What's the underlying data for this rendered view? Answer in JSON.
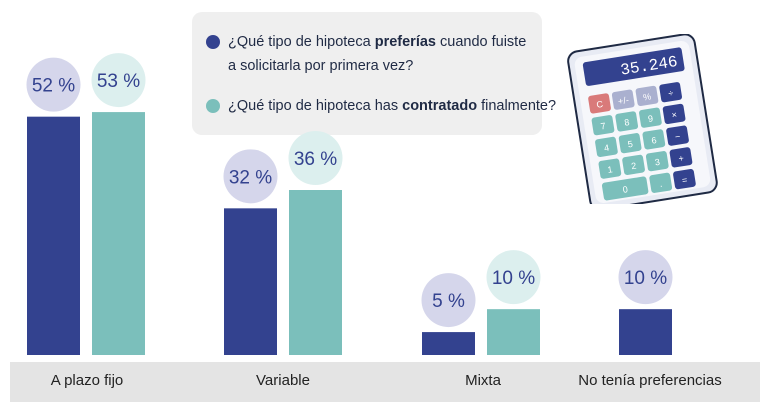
{
  "chart_data": {
    "type": "bar",
    "categories": [
      "A plazo fijo",
      "Variable",
      "Mixta",
      "No tenía preferencias"
    ],
    "series": [
      {
        "name": "¿Qué tipo de hipoteca preferías cuando fuiste a solicitarla por primera vez?",
        "legend_parts": [
          "¿Qué tipo de hipoteca ",
          "preferías",
          " cuando fuiste",
          "a solicitarla por primera vez?"
        ],
        "color": "#33428f",
        "bubble_color": "#d5d6eb",
        "values": [
          52,
          32,
          5,
          10
        ],
        "labels": [
          "52 %",
          "32 %",
          "5 %",
          "10 %"
        ]
      },
      {
        "name": "¿Qué tipo de hipoteca has contratado finalmente?",
        "legend_parts": [
          "¿Qué tipo de hipoteca has ",
          "contratado",
          " finalmente?"
        ],
        "color": "#7bbfbb",
        "bubble_color": "#dcefee",
        "values": [
          53,
          36,
          10,
          null
        ],
        "labels": [
          "53 %",
          "36 %",
          "10 %",
          ""
        ]
      }
    ],
    "ylim": [
      0,
      60
    ],
    "grid": false,
    "legend": "top-center"
  },
  "calculator": {
    "display": "35.246",
    "keys": [
      "C",
      "+/-",
      "%",
      "÷",
      "7",
      "8",
      "9",
      "×",
      "4",
      "5",
      "6",
      "−",
      "1",
      "2",
      "3",
      "+",
      "0",
      ".",
      "="
    ]
  }
}
